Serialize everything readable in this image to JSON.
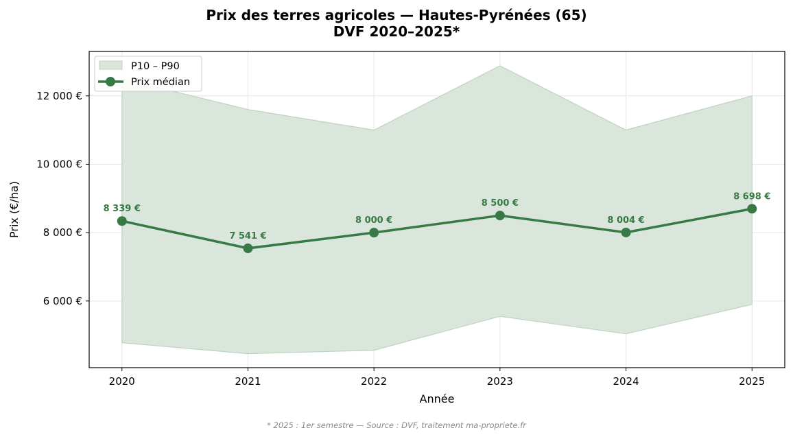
{
  "colors": {
    "line": "#377a45",
    "band_fill": "#dae6dc",
    "band_edge": "#bcd3c1",
    "grid": "#e6e6e6",
    "footnote": "#8a8a8a"
  },
  "chart_data": {
    "type": "line",
    "title_line1": "Prix des terres agricoles — Hautes-Pyrénées (65)",
    "title_line2": "DVF 2020–2025*",
    "xlabel": "Année",
    "ylabel": "Prix (€/ha)",
    "x": [
      2020,
      2021,
      2022,
      2023,
      2024,
      2025
    ],
    "x_tick_labels": [
      "2020",
      "2021",
      "2022",
      "2023",
      "2024",
      "2025"
    ],
    "xlim": [
      2019.74,
      2025.26
    ],
    "ylim": [
      4050,
      13300
    ],
    "y_ticks": [
      6000,
      8000,
      10000,
      12000
    ],
    "y_tick_labels": [
      "6 000 €",
      "8 000 €",
      "10 000 €",
      "12 000 €"
    ],
    "grid": true,
    "legend_position": "top-left",
    "series": [
      {
        "name": "Prix médian",
        "values": [
          8339,
          7541,
          8000,
          8500,
          8004,
          8698
        ],
        "data_labels": [
          "8 339 €",
          "7 541 €",
          "8 000 €",
          "8 500 €",
          "8 004 €",
          "8 698 €"
        ]
      }
    ],
    "band": {
      "name": "P10 – P90",
      "lower": [
        4780,
        4460,
        4560,
        5550,
        5040,
        5900
      ],
      "upper": [
        12500,
        11600,
        11000,
        12880,
        11000,
        12000
      ]
    },
    "footnote": "* 2025 : 1er semestre — Source : DVF, traitement ma-propriete.fr"
  }
}
